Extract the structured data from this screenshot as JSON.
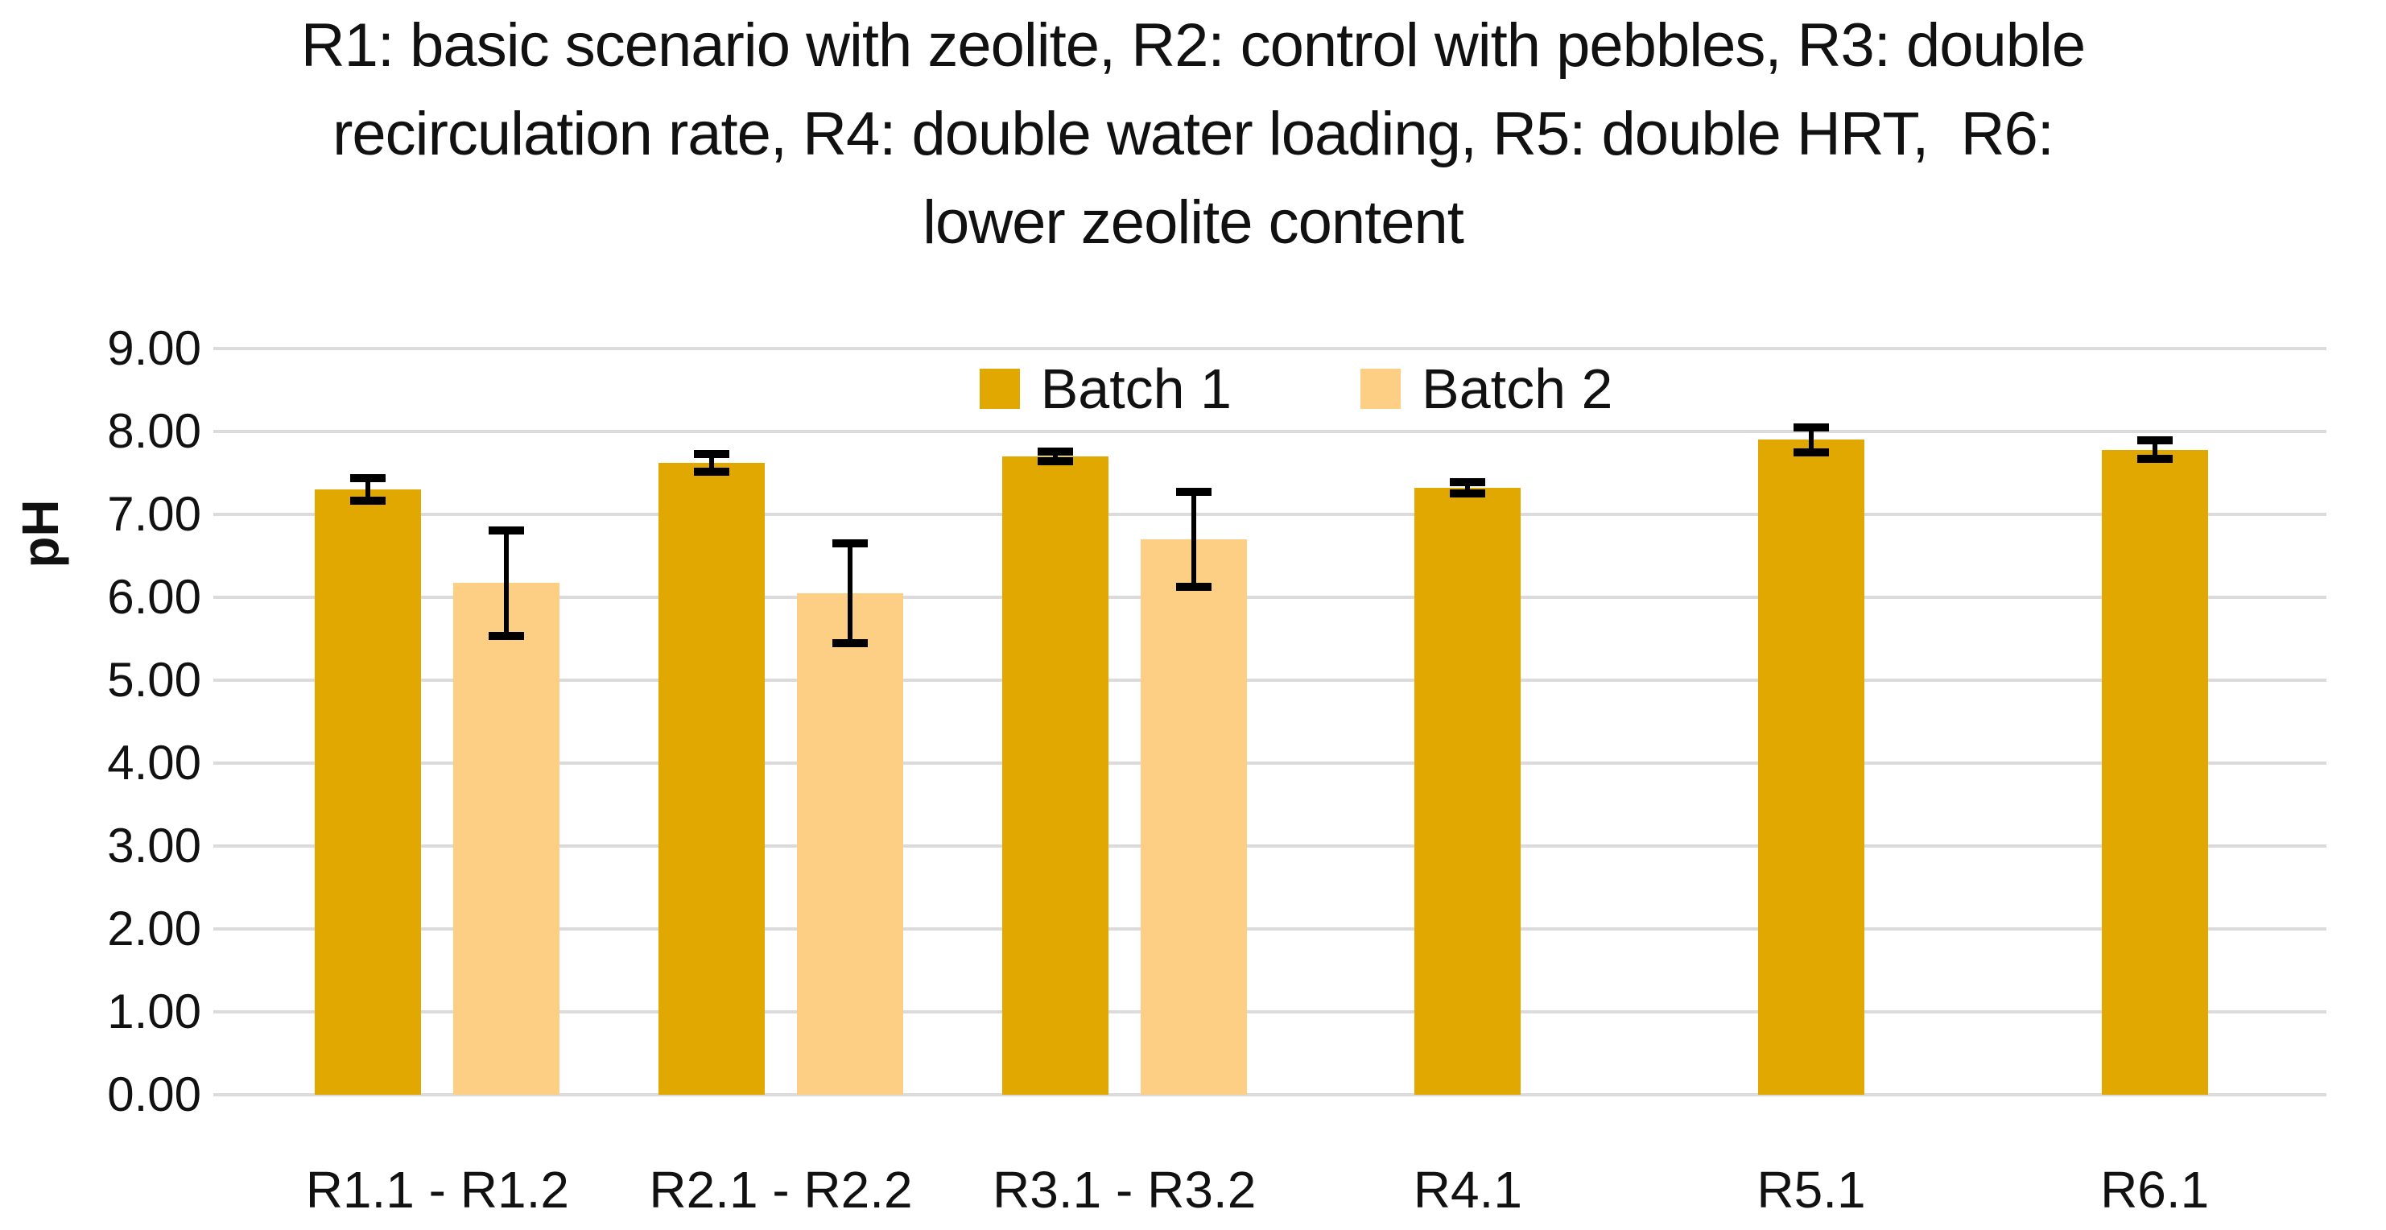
{
  "title": {
    "lines": [
      "R1: basic scenario with zeolite, R2: control with pebbles, R3: double",
      "recirculation rate, R4: double water loading, R5: double HRT,  R6:",
      "lower zeolite content"
    ]
  },
  "y_axis": {
    "title": "pH"
  },
  "chart_data": {
    "type": "bar",
    "title": "R1: basic scenario with zeolite, R2: control with pebbles, R3: double recirculation rate, R4: double water loading, R5: double HRT,  R6: lower zeolite content",
    "categories": [
      "R1.1 - R1.2",
      "R2.1 - R2.2",
      "R3.1 - R3.2",
      "R4.1",
      "R5.1",
      "R6.1"
    ],
    "series": [
      {
        "name": "Batch 1",
        "color": "#E0A800",
        "values": [
          7.3,
          7.62,
          7.7,
          7.32,
          7.9,
          7.78
        ],
        "errors": [
          0.12,
          0.09,
          0.04,
          0.05,
          0.13,
          0.09
        ]
      },
      {
        "name": "Batch 2",
        "color": "#FDCF85",
        "values": [
          6.17,
          6.05,
          6.7,
          null,
          null,
          null
        ],
        "errors": [
          0.62,
          0.58,
          0.55,
          null,
          null,
          null
        ]
      }
    ],
    "xlabel": "",
    "ylabel": "pH",
    "ylim": [
      0,
      9
    ],
    "ytick_step": 1,
    "yticks": [
      "0.00",
      "1.00",
      "2.00",
      "3.00",
      "4.00",
      "5.00",
      "6.00",
      "7.00",
      "8.00",
      "9.00"
    ],
    "grid": true,
    "gridline_color": "#DBDBDB",
    "error_bar_color": "#000000",
    "legend_position": "top-center-inside"
  }
}
